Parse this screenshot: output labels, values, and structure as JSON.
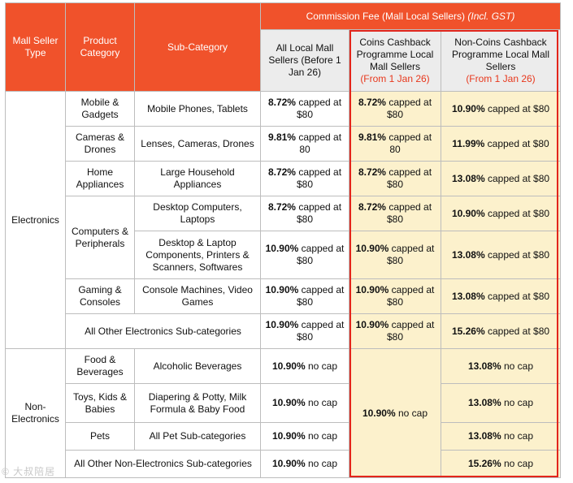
{
  "header": {
    "seller_type": "Mall Seller Type",
    "product_category": "Product Category",
    "sub_category": "Sub-Category",
    "commission_title": "Commission Fee (Mall Local Sellers)",
    "commission_note": "(Incl. GST)",
    "col_before": "All Local Mall Sellers (Before 1 Jan 26)",
    "col_coins": "Coins Cashback Programme Local Mall Sellers",
    "col_coins_date": "(From 1 Jan 26)",
    "col_noncoins": "Non-Coins Cashback Programme Local Mall Sellers",
    "col_noncoins_date": "(From 1 Jan 26)"
  },
  "groups": {
    "electronics": "Electronics",
    "non_electronics": "Non-Electronics"
  },
  "rows": [
    {
      "category": "Mobile & Gadgets",
      "sub": "Mobile Phones, Tablets",
      "before_pct": "8.72%",
      "before_rest": " capped at $80",
      "coins_pct": "8.72%",
      "coins_rest": " capped at $80",
      "non_pct": "10.90%",
      "non_rest": " capped at $80"
    },
    {
      "category": "Cameras & Drones",
      "sub": "Lenses, Cameras, Drones",
      "before_pct": "9.81%",
      "before_rest": " capped at 80",
      "coins_pct": "9.81%",
      "coins_rest": " capped at 80",
      "non_pct": "11.99%",
      "non_rest": " capped at $80"
    },
    {
      "category": "Home Appliances",
      "sub": "Large Household Appliances",
      "before_pct": "8.72%",
      "before_rest": " capped at $80",
      "coins_pct": "8.72%",
      "coins_rest": " capped at $80",
      "non_pct": "13.08%",
      "non_rest": " capped at $80"
    },
    {
      "category": "Computers & Peripherals",
      "sub": "Desktop Computers, Laptops",
      "before_pct": "8.72%",
      "before_rest": " capped at $80",
      "coins_pct": "8.72%",
      "coins_rest": " capped at $80",
      "non_pct": "10.90%",
      "non_rest": " capped at $80"
    },
    {
      "category": "",
      "sub": "Desktop & Laptop Components, Printers & Scanners, Softwares",
      "before_pct": "10.90%",
      "before_rest": " capped at $80",
      "coins_pct": "10.90%",
      "coins_rest": " capped at $80",
      "non_pct": "13.08%",
      "non_rest": " capped at $80"
    },
    {
      "category": "Gaming & Consoles",
      "sub": "Console Machines, Video Games",
      "before_pct": "10.90%",
      "before_rest": " capped at $80",
      "coins_pct": "10.90%",
      "coins_rest": " capped at $80",
      "non_pct": "13.08%",
      "non_rest": " capped at $80"
    },
    {
      "category": "All Other Electronics Sub-categories",
      "sub": "",
      "before_pct": "10.90%",
      "before_rest": " capped at $80",
      "coins_pct": "10.90%",
      "coins_rest": " capped at $80",
      "non_pct": "15.26%",
      "non_rest": " capped at $80"
    },
    {
      "category": "Food & Beverages",
      "sub": "Alcoholic Beverages",
      "before_pct": "10.90%",
      "before_rest": " no cap",
      "coins_pct": "",
      "coins_rest": "",
      "non_pct": "13.08%",
      "non_rest": " no cap"
    },
    {
      "category": "Toys, Kids & Babies",
      "sub": "Diapering & Potty, Milk Formula & Baby Food",
      "before_pct": "10.90%",
      "before_rest": " no cap",
      "coins_pct": "",
      "coins_rest": "",
      "non_pct": "13.08%",
      "non_rest": " no cap"
    },
    {
      "category": "Pets",
      "sub": "All Pet Sub-categories",
      "before_pct": "10.90%",
      "before_rest": " no cap",
      "coins_pct": "",
      "coins_rest": "",
      "non_pct": "13.08%",
      "non_rest": " no cap"
    },
    {
      "category": "All Other Non-Electronics Sub-categories",
      "sub": "",
      "before_pct": "10.90%",
      "before_rest": " no cap",
      "coins_pct": "",
      "coins_rest": "",
      "non_pct": "15.26%",
      "non_rest": " no cap"
    }
  ],
  "non_electronics_coins": {
    "pct": "10.90%",
    "rest": " no cap"
  },
  "watermark": "© 大叔陪居",
  "colors": {
    "header": "#f0522b",
    "highlight": "#fcf1cc",
    "frame": "#e3251b",
    "date_red": "#e8371c"
  }
}
